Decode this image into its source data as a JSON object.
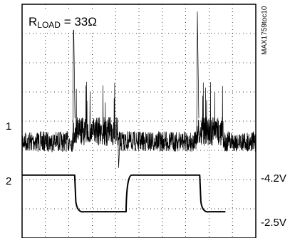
{
  "chart_data": {
    "type": "line",
    "title_prefix": "R",
    "title_sub": "LOAD",
    "title_suffix": " = 33Ω",
    "side_label": "MAX1759toc10",
    "channels": [
      {
        "id": "1",
        "name": "1"
      },
      {
        "id": "2",
        "name": "2",
        "levels": [
          "-4.2V",
          "-2.5V"
        ]
      }
    ],
    "grid": true,
    "x_divisions": 10,
    "y_divisions": 8,
    "channel1": {
      "baseline_div": 4.7,
      "quiet_amplitude_div": 0.35,
      "active_offset_div": 0.35,
      "active_amplitude_div": 0.5,
      "spike_top_div": 0.25,
      "active_intervals_div": [
        [
          2.2,
          4.1
        ],
        [
          7.5,
          8.6
        ]
      ]
    },
    "channel2": {
      "high_level": "-4.2V",
      "low_level": "-2.5V",
      "segments_div": [
        {
          "x": [
            0.0,
            2.25
          ],
          "level": "high"
        },
        {
          "x": [
            2.3,
            4.45
          ],
          "level": "low"
        },
        {
          "x": [
            4.45,
            7.6
          ],
          "level": "high"
        },
        {
          "x": [
            7.65,
            8.7
          ],
          "level": "low"
        }
      ]
    }
  },
  "labels": {
    "ch1": "1",
    "ch2": "2",
    "v_high": "-4.2V",
    "v_low": "-2.5V",
    "title_prefix": "R",
    "title_sub": "LOAD",
    "title_suffix": " = 33Ω",
    "side": "MAX1759toc10"
  }
}
